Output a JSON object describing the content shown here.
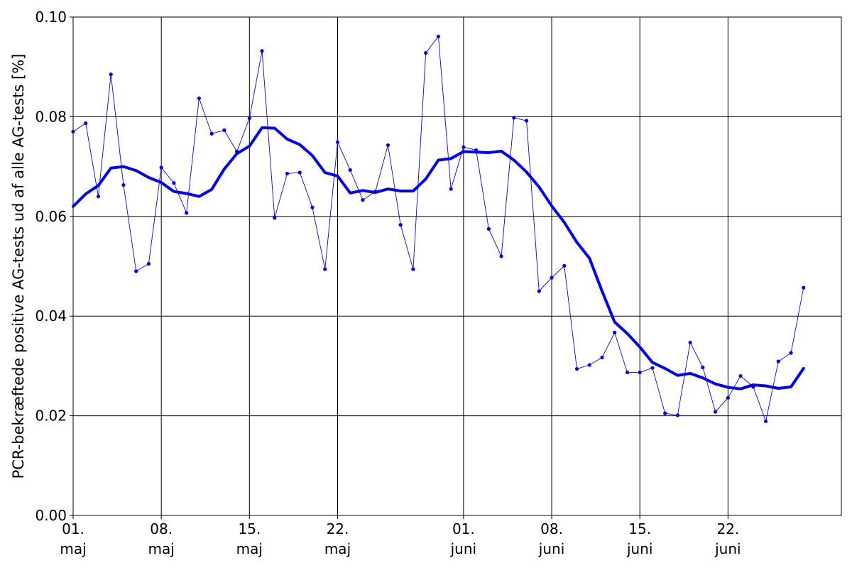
{
  "chart_data": {
    "type": "line",
    "title": "",
    "xlabel": "",
    "ylabel": "PCR-bekræftede positive AG-tests ud af alle AG-tests [%]",
    "grid": true,
    "x_range": [
      "2021-05-01",
      "2021-07-01"
    ],
    "ylim": [
      0,
      0.1
    ],
    "y_ticks": [
      "0.00",
      "0.02",
      "0.04",
      "0.06",
      "0.08",
      "0.10"
    ],
    "x_ticks": [
      {
        "date": "2021-05-01",
        "line1": "01.",
        "line2": "maj"
      },
      {
        "date": "2021-05-08",
        "line1": "08.",
        "line2": "maj"
      },
      {
        "date": "2021-05-15",
        "line1": "15.",
        "line2": "maj"
      },
      {
        "date": "2021-05-22",
        "line1": "22.",
        "line2": "maj"
      },
      {
        "date": "2021-06-01",
        "line1": "01.",
        "line2": "juni"
      },
      {
        "date": "2021-06-08",
        "line1": "08.",
        "line2": "juni"
      },
      {
        "date": "2021-06-15",
        "line1": "15.",
        "line2": "juni"
      },
      {
        "date": "2021-06-22",
        "line1": "22.",
        "line2": "juni"
      }
    ],
    "colors": {
      "series": "#0000ff",
      "grid": "#000000"
    },
    "x": [
      "2021-05-01",
      "2021-05-02",
      "2021-05-03",
      "2021-05-04",
      "2021-05-05",
      "2021-05-06",
      "2021-05-07",
      "2021-05-08",
      "2021-05-09",
      "2021-05-10",
      "2021-05-11",
      "2021-05-12",
      "2021-05-13",
      "2021-05-14",
      "2021-05-15",
      "2021-05-16",
      "2021-05-17",
      "2021-05-18",
      "2021-05-19",
      "2021-05-20",
      "2021-05-21",
      "2021-05-22",
      "2021-05-23",
      "2021-05-24",
      "2021-05-25",
      "2021-05-26",
      "2021-05-27",
      "2021-05-28",
      "2021-05-29",
      "2021-05-30",
      "2021-05-31",
      "2021-06-01",
      "2021-06-02",
      "2021-06-03",
      "2021-06-04",
      "2021-06-05",
      "2021-06-06",
      "2021-06-07",
      "2021-06-08",
      "2021-06-09",
      "2021-06-10",
      "2021-06-11",
      "2021-06-12",
      "2021-06-13",
      "2021-06-14",
      "2021-06-15",
      "2021-06-16",
      "2021-06-17",
      "2021-06-18",
      "2021-06-19",
      "2021-06-20",
      "2021-06-21",
      "2021-06-22",
      "2021-06-23",
      "2021-06-24",
      "2021-06-25",
      "2021-06-26",
      "2021-06-27",
      "2021-06-28"
    ],
    "series": [
      {
        "style": "thin-with-markers",
        "values": [
          0.077,
          0.0787,
          0.064,
          0.0885,
          0.0663,
          0.049,
          0.0505,
          0.0698,
          0.0667,
          0.0607,
          0.0837,
          0.0766,
          0.0773,
          0.073,
          0.0797,
          0.0932,
          0.0597,
          0.0686,
          0.0688,
          0.0618,
          0.0494,
          0.0749,
          0.0693,
          0.0633,
          0.065,
          0.0743,
          0.0583,
          0.0494,
          0.0928,
          0.0961,
          0.0655,
          0.0739,
          0.0733,
          0.0575,
          0.052,
          0.0798,
          0.0792,
          0.045,
          0.0477,
          0.0501,
          0.0294,
          0.0302,
          0.0317,
          0.0367,
          0.0287,
          0.0287,
          0.0296,
          0.0205,
          0.0201,
          0.0347,
          0.0297,
          0.0208,
          0.0236,
          0.028,
          0.0258,
          0.0189,
          0.0309,
          0.0326,
          0.0457
        ]
      },
      {
        "style": "thick-smoothed",
        "values": [
          0.062,
          0.0645,
          0.0662,
          0.0697,
          0.07,
          0.0692,
          0.0678,
          0.0668,
          0.065,
          0.0646,
          0.064,
          0.0654,
          0.0695,
          0.0726,
          0.0741,
          0.0778,
          0.0777,
          0.0755,
          0.0744,
          0.0722,
          0.0688,
          0.0681,
          0.0647,
          0.0652,
          0.0648,
          0.0655,
          0.0651,
          0.0651,
          0.0675,
          0.0713,
          0.0716,
          0.073,
          0.0729,
          0.0728,
          0.0731,
          0.0713,
          0.0689,
          0.0659,
          0.0621,
          0.0588,
          0.0548,
          0.0516,
          0.045,
          0.0388,
          0.0365,
          0.0338,
          0.0307,
          0.0295,
          0.0281,
          0.0285,
          0.0276,
          0.0264,
          0.0257,
          0.0254,
          0.0262,
          0.026,
          0.0255,
          0.0258,
          0.0295
        ]
      }
    ]
  }
}
